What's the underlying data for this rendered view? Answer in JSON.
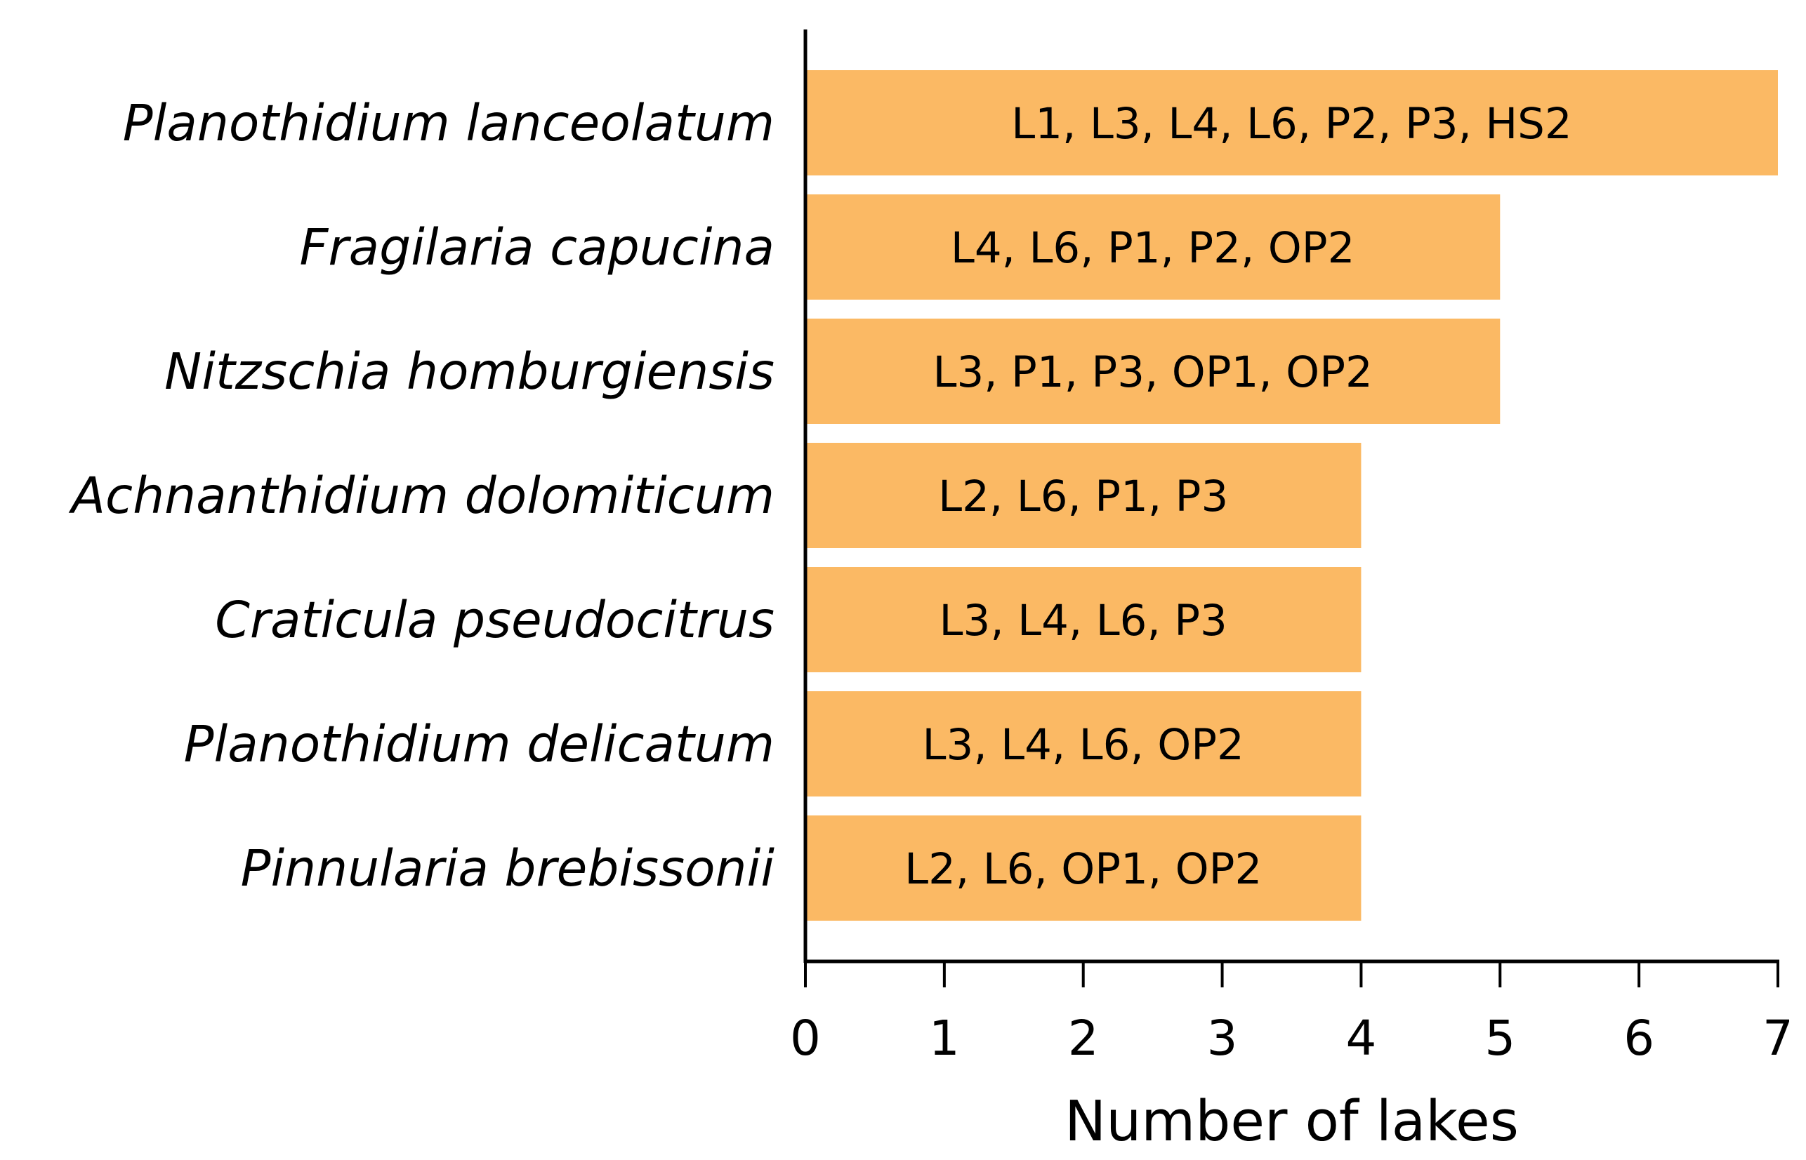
{
  "chart_data": {
    "type": "bar",
    "orientation": "horizontal",
    "categories": [
      "Planothidium lanceolatum",
      "Fragilaria capucina",
      "Nitzschia homburgiensis",
      "Achnanthidium dolomiticum",
      "Craticula pseudocitrus",
      "Planothidium delicatum",
      "Pinnularia brebissonii"
    ],
    "values": [
      7,
      5,
      5,
      4,
      4,
      4,
      4
    ],
    "bar_labels": [
      "L1, L3, L4, L6, P2, P3, HS2",
      "L4, L6, P1, P2, OP2",
      "L3, P1, P3, OP1, OP2",
      "L2, L6, P1, P3",
      "L3, L4, L6, P3",
      "L3, L4, L6, OP2",
      "L2, L6, OP1, OP2"
    ],
    "xlabel": "Number of lakes",
    "ylabel": "",
    "xlim": [
      0,
      7
    ],
    "xticks": [
      "0",
      "1",
      "2",
      "3",
      "4",
      "5",
      "6",
      "7"
    ],
    "grid": false,
    "bar_color": "#fbb964"
  }
}
